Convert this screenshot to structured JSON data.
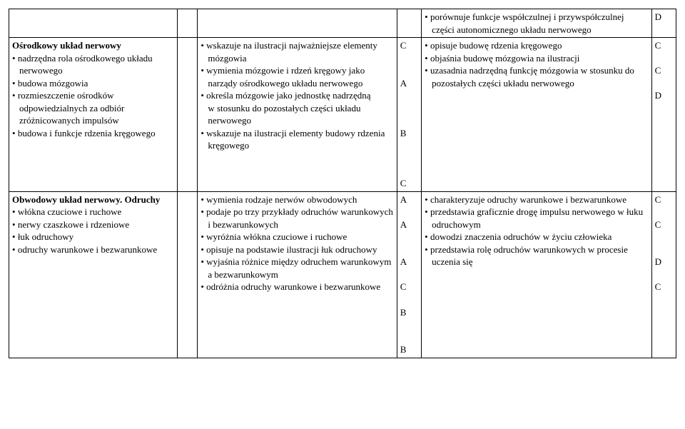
{
  "rows": [
    {
      "topic_bold": "",
      "topic_items": [],
      "mid_items": [],
      "mid_letters": [],
      "right_items": [
        {
          "t": "porównuje funkcje współczulnej i przywspółczulnej części autonomicznego układu nerwowego"
        }
      ],
      "right_letters": [
        "D"
      ]
    },
    {
      "topic_bold": "Ośrodkowy układ nerwowy",
      "topic_items": [
        {
          "t": "nadrzędna rola ośrodkowego układu nerwowego"
        },
        {
          "t": "budowa mózgowia"
        },
        {
          "t": "rozmieszczenie ośrodków odpowiedzialnych za odbiór zróżnicowanych impulsów"
        },
        {
          "t": "budowa i funkcje rdzenia kręgowego"
        }
      ],
      "mid_items": [
        {
          "t": "wskazuje na ilustracji najważniejsze elementy mózgowia"
        },
        {
          "t": "wymienia mózgowie i rdzeń kręgowy jako narządy ośrodkowego układu nerwowego"
        },
        {
          "t": "określa mózgowie jako jednostkę nadrzędną w stosunku do pozostałych części układu nerwowego"
        },
        {
          "t": "wskazuje na ilustracji elementy budowy rdzenia kręgowego"
        }
      ],
      "mid_letters": [
        "C",
        "",
        "",
        "A",
        "",
        "",
        "",
        "B",
        "",
        "",
        "",
        "C"
      ],
      "right_items": [
        {
          "t": "opisuje budowę rdzenia kręgowego"
        },
        {
          "t": "objaśnia budowę mózgowia na ilustracji"
        },
        {
          "t": "uzasadnia nadrzędną funkcję mózgowia w stosunku do pozostałych części układu nerwowego"
        }
      ],
      "right_letters": [
        "C",
        "",
        "C",
        "",
        "D"
      ]
    },
    {
      "topic_bold": "Obwodowy układ nerwowy. Odruchy",
      "topic_items": [
        {
          "t": "włókna czuciowe i ruchowe"
        },
        {
          "t": "nerwy czaszkowe i rdzeniowe"
        },
        {
          "t": "łuk odruchowy"
        },
        {
          "t": "odruchy warunkowe i bezwarunkowe"
        }
      ],
      "mid_items": [
        {
          "t": "wymienia rodzaje nerwów obwodowych"
        },
        {
          "t": "podaje po trzy przykłady odruchów warunkowych i bezwarunkowych"
        },
        {
          "t": "wyróżnia włókna czuciowe i ruchowe"
        },
        {
          "t": "opisuje na podstawie ilustracji łuk odruchowy"
        },
        {
          "t": "wyjaśnia różnice między odruchem warunkowym a bezwarunkowym"
        },
        {
          "t": "odróżnia odruchy warunkowe i bezwarunkowe"
        }
      ],
      "mid_letters": [
        "A",
        "",
        "A",
        "",
        "",
        "A",
        "",
        "C",
        "",
        "B",
        "",
        "",
        "B"
      ],
      "right_items": [
        {
          "t": "charakteryzuje odruchy warunkowe i bezwarunkowe"
        },
        {
          "t": "przedstawia graficznie drogę impulsu nerwowego w łuku odruchowym"
        },
        {
          "t": "dowodzi znaczenia odruchów w życiu człowieka"
        },
        {
          "t": "przedstawia rolę odruchów warunkowych w procesie uczenia się"
        }
      ],
      "right_letters": [
        "C",
        "",
        "C",
        "",
        "",
        "D",
        "",
        "C"
      ]
    }
  ]
}
